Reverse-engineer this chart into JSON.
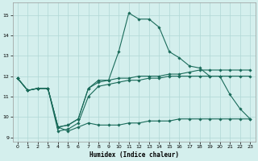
{
  "xlabel": "Humidex (Indice chaleur)",
  "xlim": [
    -0.5,
    23.5
  ],
  "ylim": [
    8.8,
    15.6
  ],
  "yticks": [
    9,
    10,
    11,
    12,
    13,
    14,
    15
  ],
  "xticks": [
    0,
    1,
    2,
    3,
    4,
    5,
    6,
    7,
    8,
    9,
    10,
    11,
    12,
    13,
    14,
    15,
    16,
    17,
    18,
    19,
    20,
    21,
    22,
    23
  ],
  "background_color": "#d4efed",
  "grid_color": "#b0d8d5",
  "line_color": "#1a6b5a",
  "curves": [
    {
      "x": [
        0,
        1,
        2,
        3,
        4,
        5,
        6,
        7,
        8,
        9,
        10,
        11,
        12,
        13,
        14,
        15,
        16,
        17,
        18,
        19,
        20,
        21,
        22,
        23
      ],
      "y": [
        11.9,
        11.3,
        11.4,
        11.4,
        9.5,
        9.6,
        9.9,
        11.4,
        11.8,
        11.8,
        13.2,
        15.1,
        14.8,
        14.8,
        14.4,
        13.2,
        12.9,
        12.5,
        12.4,
        12.0,
        12.0,
        11.1,
        10.4,
        9.9
      ]
    },
    {
      "x": [
        0,
        1,
        2,
        3,
        4,
        5,
        6,
        7,
        8,
        9,
        10,
        11,
        12,
        13,
        14,
        15,
        16,
        17,
        18,
        19,
        20,
        21,
        22,
        23
      ],
      "y": [
        11.9,
        11.3,
        11.4,
        11.4,
        9.5,
        9.6,
        9.9,
        11.4,
        11.7,
        11.8,
        11.9,
        11.9,
        12.0,
        12.0,
        12.0,
        12.1,
        12.1,
        12.2,
        12.3,
        12.3,
        12.3,
        12.3,
        12.3,
        12.3
      ]
    },
    {
      "x": [
        0,
        1,
        2,
        3,
        4,
        5,
        6,
        7,
        8,
        9,
        10,
        11,
        12,
        13,
        14,
        15,
        16,
        17,
        18,
        19,
        20,
        21,
        22,
        23
      ],
      "y": [
        11.9,
        11.3,
        11.4,
        11.4,
        9.3,
        9.4,
        9.7,
        11.0,
        11.5,
        11.6,
        11.7,
        11.8,
        11.8,
        11.9,
        11.9,
        12.0,
        12.0,
        12.0,
        12.0,
        12.0,
        12.0,
        12.0,
        12.0,
        12.0
      ]
    },
    {
      "x": [
        0,
        1,
        2,
        3,
        4,
        5,
        6,
        7,
        8,
        9,
        10,
        11,
        12,
        13,
        14,
        15,
        16,
        17,
        18,
        19,
        20,
        21,
        22,
        23
      ],
      "y": [
        11.9,
        11.3,
        11.4,
        11.4,
        9.5,
        9.3,
        9.5,
        9.7,
        9.6,
        9.6,
        9.6,
        9.7,
        9.7,
        9.8,
        9.8,
        9.8,
        9.9,
        9.9,
        9.9,
        9.9,
        9.9,
        9.9,
        9.9,
        9.9
      ]
    }
  ]
}
